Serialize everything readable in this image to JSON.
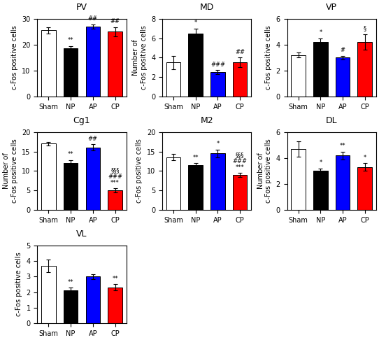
{
  "chart_data": [
    {
      "type": "bar",
      "title": "PV",
      "ylabel": "c-Fos positive cells",
      "categories": [
        "Sham",
        "NP",
        "AP",
        "CP"
      ],
      "values": [
        25.5,
        18.5,
        27.0,
        25.0
      ],
      "errors": [
        1.2,
        1.0,
        0.8,
        1.8
      ],
      "annotations": [
        null,
        "**",
        "##",
        "##"
      ],
      "colors": [
        "white",
        "black",
        "blue",
        "red"
      ],
      "ylim": [
        0,
        30
      ],
      "yticks": [
        0,
        10,
        20,
        30
      ]
    },
    {
      "type": "bar",
      "title": "MD",
      "ylabel": "Number of\nc-Fos positive cells",
      "categories": [
        "Sham",
        "NP",
        "AP",
        "CP"
      ],
      "values": [
        3.5,
        6.5,
        2.5,
        3.5
      ],
      "errors": [
        0.7,
        0.5,
        0.2,
        0.5
      ],
      "annotations": [
        null,
        "*",
        "###",
        "##"
      ],
      "colors": [
        "white",
        "black",
        "blue",
        "red"
      ],
      "ylim": [
        0,
        8
      ],
      "yticks": [
        0,
        2,
        4,
        6,
        8
      ]
    },
    {
      "type": "bar",
      "title": "VP",
      "ylabel": "c-Fos positive cells",
      "categories": [
        "Sham",
        "NP",
        "AP",
        "CP"
      ],
      "values": [
        3.2,
        4.2,
        3.0,
        4.2
      ],
      "errors": [
        0.2,
        0.3,
        0.15,
        0.6
      ],
      "annotations": [
        null,
        "*",
        "#",
        "§"
      ],
      "colors": [
        "white",
        "black",
        "blue",
        "red"
      ],
      "ylim": [
        0,
        6
      ],
      "yticks": [
        0,
        2,
        4,
        6
      ]
    },
    {
      "type": "bar",
      "title": "Cg1",
      "ylabel": "Number of\nc-Fos positive cells",
      "categories": [
        "Sham",
        "NP",
        "AP",
        "CP"
      ],
      "values": [
        17.0,
        12.0,
        16.0,
        5.0
      ],
      "errors": [
        0.5,
        0.8,
        0.8,
        0.5
      ],
      "annotations": [
        null,
        "**",
        "##",
        "§§§\n###\n***"
      ],
      "colors": [
        "white",
        "black",
        "blue",
        "red"
      ],
      "ylim": [
        0,
        20
      ],
      "yticks": [
        0,
        5,
        10,
        15,
        20
      ]
    },
    {
      "type": "bar",
      "title": "M2",
      "ylabel": "c-Fos positive cells",
      "categories": [
        "Sham",
        "NP",
        "AP",
        "CP"
      ],
      "values": [
        13.5,
        11.5,
        14.5,
        9.0
      ],
      "errors": [
        0.8,
        0.5,
        1.0,
        0.5
      ],
      "annotations": [
        null,
        "**",
        "*",
        "§§§\n###\n***"
      ],
      "colors": [
        "white",
        "black",
        "blue",
        "red"
      ],
      "ylim": [
        0,
        20
      ],
      "yticks": [
        0,
        5,
        10,
        15,
        20
      ]
    },
    {
      "type": "bar",
      "title": "DL",
      "ylabel": "Number of\nc-Fos positive cells",
      "categories": [
        "Sham",
        "NP",
        "AP",
        "CP"
      ],
      "values": [
        4.7,
        3.0,
        4.2,
        3.3
      ],
      "errors": [
        0.6,
        0.2,
        0.3,
        0.3
      ],
      "annotations": [
        null,
        "*",
        "**",
        "*"
      ],
      "colors": [
        "white",
        "black",
        "blue",
        "red"
      ],
      "ylim": [
        0,
        6
      ],
      "yticks": [
        0,
        2,
        4,
        6
      ]
    },
    {
      "type": "bar",
      "title": "VL",
      "ylabel": "c-Fos positive cells",
      "categories": [
        "Sham",
        "NP",
        "AP",
        "CP"
      ],
      "values": [
        3.7,
        2.1,
        3.0,
        2.3
      ],
      "errors": [
        0.4,
        0.2,
        0.15,
        0.2
      ],
      "annotations": [
        null,
        "**",
        null,
        "**"
      ],
      "colors": [
        "white",
        "black",
        "blue",
        "red"
      ],
      "ylim": [
        0,
        5
      ],
      "yticks": [
        0,
        1,
        2,
        3,
        4,
        5
      ]
    }
  ]
}
